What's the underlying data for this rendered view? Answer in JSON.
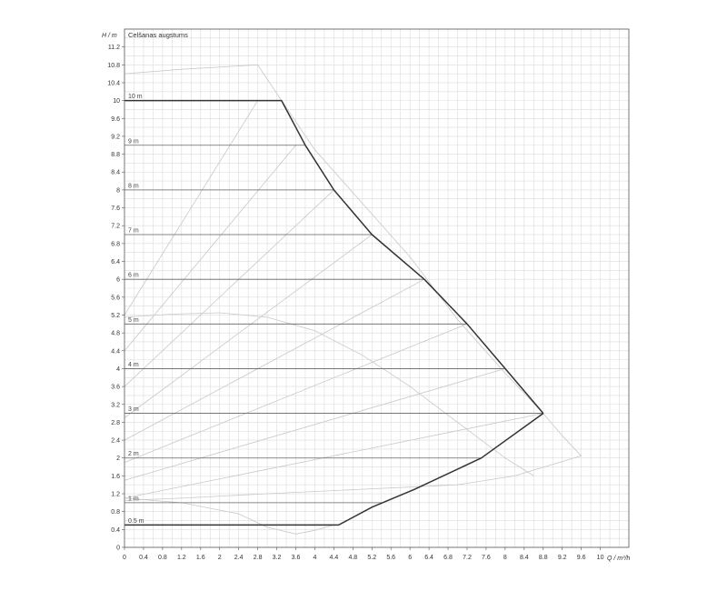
{
  "chart_data": {
    "type": "line",
    "title": "Celšanas augstums",
    "xlabel": "Q / m³/h",
    "ylabel": "H / m",
    "xlim": [
      0,
      10.6
    ],
    "ylim": [
      0,
      11.6
    ],
    "grid": true,
    "x_ticks": [
      "0",
      "0.4",
      "0.8",
      "1.2",
      "1.6",
      "2",
      "2.4",
      "2.8",
      "3.2",
      "3.6",
      "4",
      "4.4",
      "4.8",
      "5.2",
      "5.6",
      "6",
      "6.4",
      "6.8",
      "7.2",
      "7.6",
      "8",
      "8.4",
      "8.8",
      "9.2",
      "9.6",
      "10"
    ],
    "y_ticks": [
      "0",
      "0.4",
      "0.8",
      "1.2",
      "1.6",
      "2",
      "2.4",
      "2.8",
      "3.2",
      "3.6",
      "4",
      "4.4",
      "4.8",
      "5.2",
      "5.6",
      "6",
      "6.4",
      "6.8",
      "7.2",
      "7.6",
      "8",
      "8.4",
      "8.8",
      "9.2",
      "9.6",
      "10",
      "10.4",
      "10.8",
      "11.2"
    ],
    "head_levels": [
      {
        "label": "10 m",
        "h": 10
      },
      {
        "label": "9 m",
        "h": 9
      },
      {
        "label": "8 m",
        "h": 8
      },
      {
        "label": "7 m",
        "h": 7
      },
      {
        "label": "6 m",
        "h": 6
      },
      {
        "label": "5 m",
        "h": 5
      },
      {
        "label": "4 m",
        "h": 4
      },
      {
        "label": "3 m",
        "h": 3
      },
      {
        "label": "2 m",
        "h": 2
      },
      {
        "label": "1 m",
        "h": 1
      },
      {
        "label": "0.5 m",
        "h": 0.5
      }
    ],
    "series": [
      {
        "role": "max-envelope",
        "color": "#333333",
        "x": [
          0,
          3.3,
          3.8,
          4.4,
          5.2,
          6.3,
          7.2,
          8.0,
          8.8
        ],
        "y": [
          10,
          10,
          9,
          8,
          7,
          6,
          5,
          4,
          3
        ]
      },
      {
        "role": "min-envelope",
        "color": "#333333",
        "x": [
          8.8,
          7.5,
          6.1,
          5.2,
          4.5,
          0
        ],
        "y": [
          3,
          2,
          1.3,
          0.9,
          0.5,
          0.5
        ]
      },
      {
        "role": "system-curves",
        "color": "#c8c8c8",
        "lines": [
          {
            "x": [
              0,
              2.8
            ],
            "y": [
              5.2,
              10
            ]
          },
          {
            "x": [
              0,
              3.6
            ],
            "y": [
              4.4,
              9
            ]
          },
          {
            "x": [
              0,
              4.4
            ],
            "y": [
              3.6,
              8
            ]
          },
          {
            "x": [
              0,
              5.2
            ],
            "y": [
              2.9,
              7
            ]
          },
          {
            "x": [
              0,
              6.3
            ],
            "y": [
              2.4,
              6
            ]
          },
          {
            "x": [
              0,
              7.2
            ],
            "y": [
              1.9,
              5
            ]
          },
          {
            "x": [
              0,
              8.0
            ],
            "y": [
              1.5,
              4
            ]
          },
          {
            "x": [
              0,
              8.8
            ],
            "y": [
              1.1,
              3
            ]
          }
        ]
      },
      {
        "role": "outer-boundary",
        "color": "#c8c8c8",
        "x": [
          0,
          1.2,
          2.8,
          3.3,
          4.0,
          5.0,
          6.0,
          7.0,
          8.0,
          8.8,
          9.2,
          9.6,
          8.2,
          7.0,
          5.0,
          3.0,
          1.2,
          0
        ],
        "y": [
          10.6,
          10.7,
          10.8,
          10.0,
          8.9,
          7.7,
          6.5,
          5.1,
          3.9,
          3.0,
          2.5,
          2.05,
          1.6,
          1.4,
          1.3,
          1.2,
          1.1,
          1.05
        ]
      },
      {
        "role": "efficiency-arc",
        "color": "#c8c8c8",
        "x": [
          0,
          1.0,
          2.0,
          3.0,
          4.0,
          5.0,
          6.0,
          7.0,
          8.0,
          8.6
        ],
        "y": [
          5.15,
          5.22,
          5.25,
          5.15,
          4.85,
          4.3,
          3.6,
          2.8,
          2.0,
          1.6
        ]
      },
      {
        "role": "lower-dip",
        "color": "#c8c8c8",
        "x": [
          0,
          1.2,
          2.4,
          3.0,
          3.6,
          4.0,
          4.4
        ],
        "y": [
          1.1,
          1.0,
          0.75,
          0.45,
          0.3,
          0.38,
          0.5
        ]
      }
    ]
  }
}
